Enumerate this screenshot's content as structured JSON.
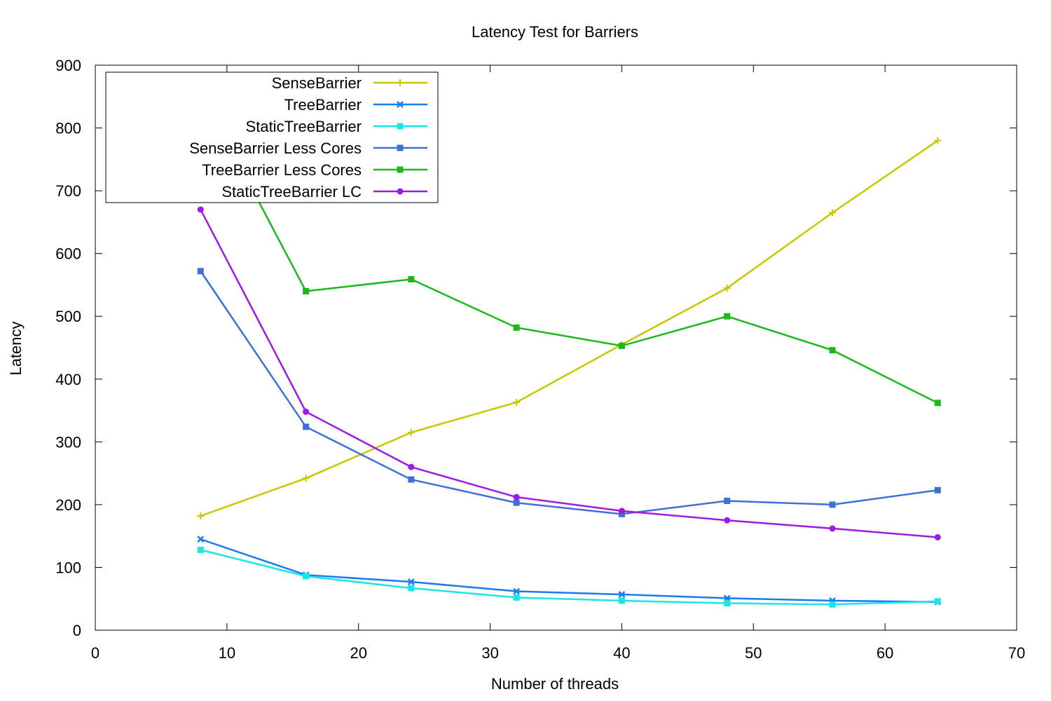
{
  "chart_data": {
    "type": "line",
    "title": "Latency Test for Barriers",
    "xlabel": "Number of threads",
    "ylabel": "Latency",
    "xlim": [
      0,
      70
    ],
    "ylim": [
      0,
      900
    ],
    "xticks": [
      "0",
      "10",
      "20",
      "30",
      "40",
      "50",
      "60",
      "70"
    ],
    "yticks": [
      "0",
      "100",
      "200",
      "300",
      "400",
      "500",
      "600",
      "700",
      "800",
      "900"
    ],
    "grid": false,
    "legend_position": "top-left",
    "x": [
      8,
      16,
      24,
      32,
      40,
      48,
      56,
      64
    ],
    "series": [
      {
        "name": "SenseBarrier",
        "color": "#c8c800",
        "marker": "plus",
        "values": [
          182,
          242,
          315,
          363,
          455,
          545,
          665,
          780
        ]
      },
      {
        "name": "TreeBarrier",
        "color": "#1a7bf0",
        "marker": "cross",
        "values": [
          145,
          88,
          77,
          62,
          57,
          51,
          47,
          45
        ]
      },
      {
        "name": "StaticTreeBarrier",
        "color": "#1ae6e6",
        "marker": "square",
        "values": [
          128,
          86,
          67,
          52,
          47,
          43,
          41,
          46
        ]
      },
      {
        "name": "SenseBarrier Less Cores",
        "color": "#3f6fd8",
        "marker": "square",
        "values": [
          572,
          324,
          240,
          203,
          185,
          206,
          200,
          223
        ]
      },
      {
        "name": "TreeBarrier Less Cores",
        "color": "#1ab81a",
        "marker": "square",
        "values": [
          859,
          540,
          559,
          482,
          453,
          500,
          446,
          362
        ]
      },
      {
        "name": "StaticTreeBarrier LC",
        "color": "#a01ae6",
        "marker": "circle",
        "values": [
          670,
          348,
          260,
          212,
          190,
          175,
          162,
          148
        ]
      }
    ]
  }
}
